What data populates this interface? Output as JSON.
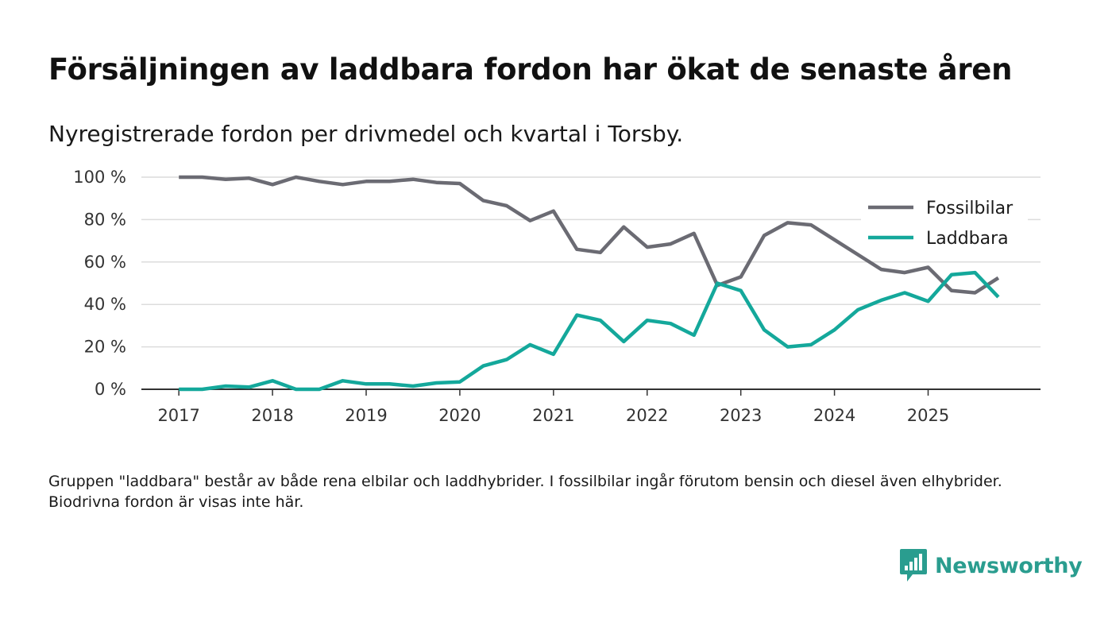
{
  "title": "Försäljningen av laddbara fordon har ökat de senaste åren",
  "subtitle": "Nyregistrerade fordon per drivmedel och kvartal i Torsby.",
  "footnote": "Gruppen \"laddbara\" består av både rena elbilar och laddhybrider. I fossilbilar ingår förutom bensin och diesel även elhybrider. Biodrivna fordon är visas inte här.",
  "brand": {
    "name": "Newsworthy",
    "icon": "newsworthy-logo-icon",
    "color": "#2a9d8f"
  },
  "chart_data": {
    "type": "line",
    "title": "Försäljningen av laddbara fordon har ökat de senaste åren",
    "subtitle": "Nyregistrerade fordon per drivmedel och kvartal i Torsby.",
    "xlabel": "",
    "ylabel": "",
    "x": [
      2017.0,
      2017.25,
      2017.5,
      2017.75,
      2018.0,
      2018.25,
      2018.5,
      2018.75,
      2019.0,
      2019.25,
      2019.5,
      2019.75,
      2020.0,
      2020.25,
      2020.5,
      2020.75,
      2021.0,
      2021.25,
      2021.5,
      2021.75,
      2022.0,
      2022.25,
      2022.5,
      2022.75,
      2023.0,
      2023.25,
      2023.5,
      2023.75,
      2024.0,
      2024.25,
      2024.5,
      2024.75,
      2025.0,
      2025.25,
      2025.5,
      2025.75
    ],
    "xticks": [
      2017,
      2018,
      2019,
      2020,
      2021,
      2022,
      2023,
      2024,
      2025
    ],
    "xtick_labels": [
      "2017",
      "2018",
      "2019",
      "2020",
      "2021",
      "2022",
      "2023",
      "2024",
      "2025"
    ],
    "xlim": [
      2016.6,
      2026.2
    ],
    "ylim": [
      0,
      100
    ],
    "yticks": [
      0,
      20,
      40,
      60,
      80,
      100
    ],
    "ytick_labels": [
      "0 %",
      "20 %",
      "40 %",
      "60 %",
      "80 %",
      "100 %"
    ],
    "grid": true,
    "legend_position": "top-right",
    "series": [
      {
        "name": "Fossilbilar",
        "color": "#6b6b73",
        "values": [
          100,
          100,
          99,
          99.5,
          96.5,
          100,
          98,
          96.5,
          98,
          98,
          99,
          97.5,
          97,
          89,
          86.5,
          79.5,
          84,
          66,
          64.5,
          76.5,
          67,
          68.5,
          73.5,
          49,
          53,
          72.5,
          78.5,
          77.5,
          70.5,
          63.5,
          56.5,
          55,
          57.5,
          46.5,
          45.5,
          52.5
        ]
      },
      {
        "name": "Laddbara",
        "color": "#14a89b",
        "values": [
          0,
          0,
          1.5,
          1,
          4,
          0,
          0,
          4,
          2.5,
          2.5,
          1.5,
          3,
          3.5,
          11,
          14,
          21,
          16.5,
          35,
          32.5,
          22.5,
          32.5,
          31,
          25.5,
          50,
          46.5,
          28,
          20,
          21,
          28,
          37.5,
          42,
          45.5,
          41.5,
          54,
          55,
          43.5
        ]
      }
    ]
  }
}
